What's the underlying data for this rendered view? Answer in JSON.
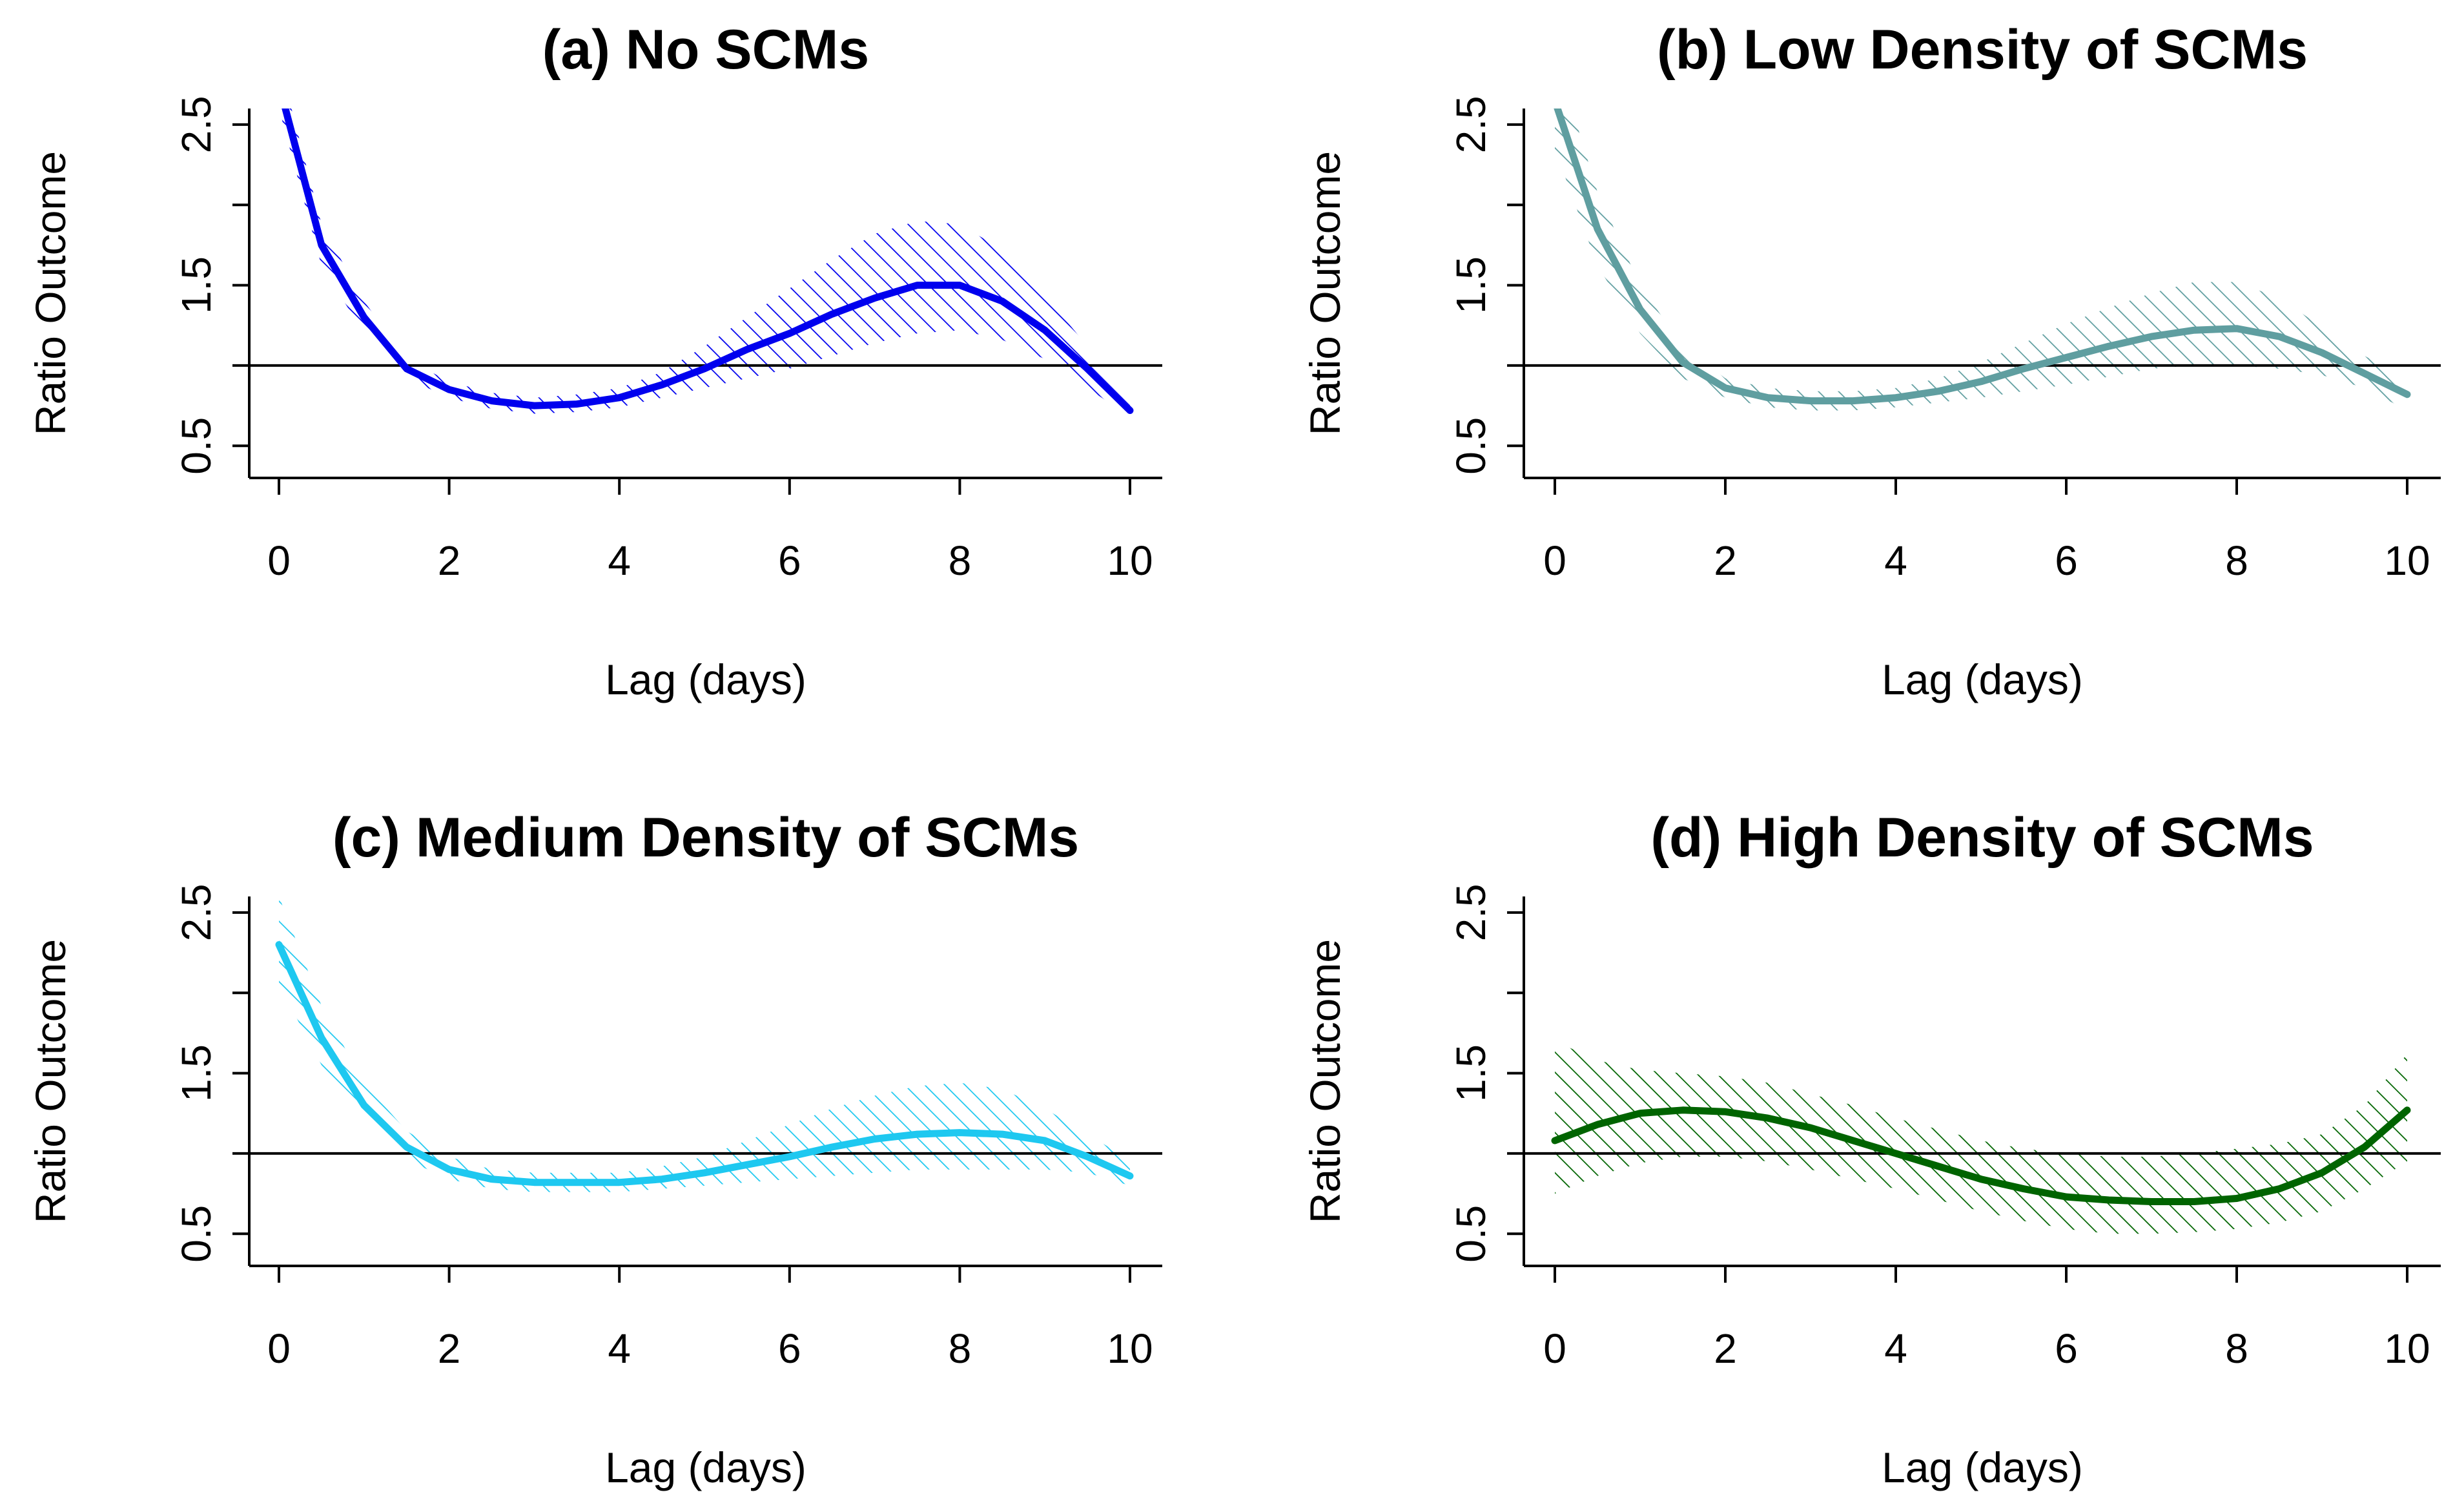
{
  "chart_data": [
    {
      "type": "line",
      "title": "(a) No SCMs",
      "xlabel": "Lag (days)",
      "ylabel": "Ratio Outcome",
      "xlim": [
        0,
        10
      ],
      "ylim": [
        0.3,
        2.6
      ],
      "xticks": [
        "0",
        "2",
        "4",
        "6",
        "8",
        "10"
      ],
      "yticks": [
        "0.5",
        "1.5",
        "2.5"
      ],
      "reference_line": 1.0,
      "color": "#0000ee",
      "hatch_color": "#0000ee",
      "series": [
        {
          "x": [
            0,
            0.5,
            1,
            1.5,
            2,
            2.5,
            3,
            3.5,
            4,
            4.5,
            5,
            5.5,
            6,
            6.5,
            7,
            7.5,
            8,
            8.5,
            9,
            9.5,
            10
          ],
          "y": [
            2.75,
            1.75,
            1.3,
            0.98,
            0.85,
            0.78,
            0.75,
            0.76,
            0.8,
            0.88,
            0.98,
            1.1,
            1.2,
            1.32,
            1.42,
            1.5,
            1.5,
            1.4,
            1.22,
            0.98,
            0.72
          ],
          "lower": [
            2.6,
            1.62,
            1.2,
            0.92,
            0.8,
            0.73,
            0.7,
            0.71,
            0.74,
            0.8,
            0.86,
            0.92,
            0.98,
            1.06,
            1.14,
            1.2,
            1.22,
            1.16,
            1.04,
            0.86,
            0.68
          ],
          "upper": [
            2.9,
            1.88,
            1.4,
            1.04,
            0.9,
            0.83,
            0.8,
            0.82,
            0.86,
            0.96,
            1.12,
            1.3,
            1.48,
            1.66,
            1.82,
            1.9,
            1.88,
            1.72,
            1.44,
            1.12,
            0.78
          ]
        }
      ]
    },
    {
      "type": "line",
      "title": "(b) Low Density of SCMs",
      "xlabel": "Lag (days)",
      "ylabel": "Ratio Outcome",
      "xlim": [
        0,
        10
      ],
      "ylim": [
        0.3,
        2.6
      ],
      "xticks": [
        "0",
        "2",
        "4",
        "6",
        "8",
        "10"
      ],
      "yticks": [
        "0.5",
        "1.5",
        "2.5"
      ],
      "reference_line": 1.0,
      "color": "#5f9ea0",
      "hatch_color": "#5f9ea0",
      "series": [
        {
          "x": [
            0,
            0.5,
            1,
            1.5,
            2,
            2.5,
            3,
            3.5,
            4,
            4.5,
            5,
            5.5,
            6,
            6.5,
            7,
            7.5,
            8,
            8.5,
            9,
            9.5,
            10
          ],
          "y": [
            2.65,
            1.85,
            1.35,
            1.02,
            0.86,
            0.8,
            0.78,
            0.78,
            0.8,
            0.84,
            0.9,
            0.98,
            1.05,
            1.12,
            1.18,
            1.22,
            1.23,
            1.18,
            1.08,
            0.95,
            0.82
          ],
          "lower": [
            2.35,
            1.62,
            1.2,
            0.92,
            0.8,
            0.74,
            0.72,
            0.72,
            0.74,
            0.77,
            0.8,
            0.84,
            0.88,
            0.93,
            0.98,
            1.0,
            1.0,
            0.98,
            0.94,
            0.86,
            0.72
          ],
          "upper": [
            2.95,
            2.08,
            1.5,
            1.12,
            0.92,
            0.86,
            0.84,
            0.84,
            0.86,
            0.92,
            1.02,
            1.14,
            1.26,
            1.36,
            1.45,
            1.52,
            1.52,
            1.42,
            1.24,
            1.06,
            0.92
          ]
        }
      ]
    },
    {
      "type": "line",
      "title": "(c) Medium Density of SCMs",
      "xlabel": "Lag (days)",
      "ylabel": "Ratio Outcome",
      "xlim": [
        0,
        10
      ],
      "ylim": [
        0.3,
        2.6
      ],
      "xticks": [
        "0",
        "2",
        "4",
        "6",
        "8",
        "10"
      ],
      "yticks": [
        "0.5",
        "1.5",
        "2.5"
      ],
      "reference_line": 1.0,
      "color": "#1ec8f0",
      "hatch_color": "#1ec8f0",
      "series": [
        {
          "x": [
            0,
            0.5,
            1,
            1.5,
            2,
            2.5,
            3,
            3.5,
            4,
            4.5,
            5,
            5.5,
            6,
            6.5,
            7,
            7.5,
            8,
            8.5,
            9,
            9.5,
            10
          ],
          "y": [
            2.3,
            1.72,
            1.3,
            1.04,
            0.9,
            0.84,
            0.82,
            0.82,
            0.82,
            0.84,
            0.88,
            0.93,
            0.98,
            1.04,
            1.09,
            1.12,
            1.13,
            1.12,
            1.08,
            0.98,
            0.86
          ],
          "lower": [
            2.05,
            1.55,
            1.18,
            0.96,
            0.84,
            0.78,
            0.76,
            0.76,
            0.76,
            0.78,
            0.8,
            0.82,
            0.84,
            0.86,
            0.88,
            0.9,
            0.9,
            0.9,
            0.9,
            0.88,
            0.8
          ],
          "upper": [
            2.6,
            1.92,
            1.44,
            1.14,
            0.98,
            0.9,
            0.88,
            0.88,
            0.88,
            0.92,
            0.98,
            1.08,
            1.18,
            1.28,
            1.36,
            1.42,
            1.44,
            1.4,
            1.28,
            1.12,
            0.96
          ]
        }
      ]
    },
    {
      "type": "line",
      "title": "(d) High Density of SCMs",
      "xlabel": "Lag (days)",
      "ylabel": "Ratio Outcome",
      "xlim": [
        0,
        10
      ],
      "ylim": [
        0.3,
        2.6
      ],
      "xticks": [
        "0",
        "2",
        "4",
        "6",
        "8",
        "10"
      ],
      "yticks": [
        "0.5",
        "1.5",
        "2.5"
      ],
      "reference_line": 1.0,
      "color": "#006400",
      "hatch_color": "#006400",
      "series": [
        {
          "x": [
            0,
            0.5,
            1,
            1.5,
            2,
            2.5,
            3,
            3.5,
            4,
            4.5,
            5,
            5.5,
            6,
            6.5,
            7,
            7.5,
            8,
            8.5,
            9,
            9.5,
            10
          ],
          "y": [
            1.08,
            1.18,
            1.25,
            1.27,
            1.26,
            1.22,
            1.16,
            1.08,
            1.0,
            0.92,
            0.84,
            0.78,
            0.73,
            0.71,
            0.7,
            0.7,
            0.72,
            0.78,
            0.88,
            1.04,
            1.27
          ],
          "lower": [
            0.75,
            0.86,
            0.94,
            0.98,
            0.98,
            0.95,
            0.9,
            0.84,
            0.78,
            0.71,
            0.64,
            0.58,
            0.53,
            0.5,
            0.5,
            0.51,
            0.53,
            0.57,
            0.64,
            0.78,
            0.95
          ],
          "upper": [
            1.7,
            1.58,
            1.52,
            1.5,
            1.48,
            1.44,
            1.37,
            1.3,
            1.22,
            1.15,
            1.08,
            1.03,
            1.0,
            0.98,
            0.98,
            1.0,
            1.03,
            1.06,
            1.12,
            1.3,
            1.62
          ]
        }
      ]
    }
  ]
}
